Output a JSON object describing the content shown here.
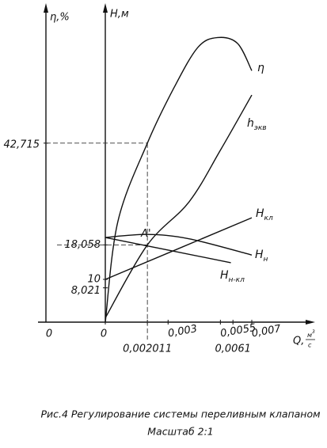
{
  "chart_data": {
    "type": "line",
    "y2label": "η,%",
    "ylabel": "H,м",
    "xlabel": "Q,",
    "xunit_num": "м",
    "xunit_exp": "3",
    "xunit_den": "с",
    "point_label": "A'",
    "caption": "Рис.4 Регулирование системы переливным клапаном",
    "scale_note": "Масштаб 2:1",
    "xlim": [
      0,
      0.0098
    ],
    "ylim": [
      0,
      73.1
    ],
    "y2lim": [
      0,
      74.6
    ],
    "xticks": [
      0,
      {
        "value": 0.002011,
        "label": "0,002011"
      },
      {
        "value": 0.003,
        "label": "0,003"
      },
      {
        "value": 0.0055,
        "label": "0,0055"
      },
      {
        "value": 0.0061,
        "label": "0,0061"
      },
      {
        "value": 0.007,
        "label": "0,007"
      }
    ],
    "yticks": [
      {
        "value": 8.021,
        "label": "8,021"
      },
      10,
      {
        "value": 18.058,
        "label": "18,058"
      }
    ],
    "y2ticks": [
      0,
      {
        "value": 42.715,
        "label": "42,715"
      }
    ],
    "series": [
      {
        "name": "η",
        "subscript": "",
        "axis": "y2",
        "color": "#111",
        "x": [
          0,
          0.0006,
          0.002011,
          0.00329,
          0.00443,
          0.00537,
          0.00632,
          0.007
        ],
        "values": [
          0,
          24,
          42.715,
          56,
          65.6,
          67.9,
          66.5,
          60
        ]
      },
      {
        "name": "h",
        "subscript": "экв",
        "color": "#111",
        "x": [
          0,
          0.002011,
          0.004,
          0.0055,
          0.007
        ],
        "values": [
          1,
          18.058,
          28.1,
          40.2,
          53.1
        ]
      },
      {
        "name": "H",
        "subscript": "кл",
        "color": "#111",
        "x": [
          0,
          0.007
        ],
        "values": [
          10,
          24.4
        ]
      },
      {
        "name": "H",
        "subscript": "н",
        "color": "#111",
        "x": [
          0,
          0.002,
          0.004,
          0.007
        ],
        "values": [
          19.8,
          20.5,
          19.5,
          15.7
        ]
      },
      {
        "name": "H",
        "subscript": "н-кл",
        "color": "#111",
        "x": [
          0,
          0.006
        ],
        "values": [
          19.8,
          13.9
        ]
      }
    ]
  }
}
